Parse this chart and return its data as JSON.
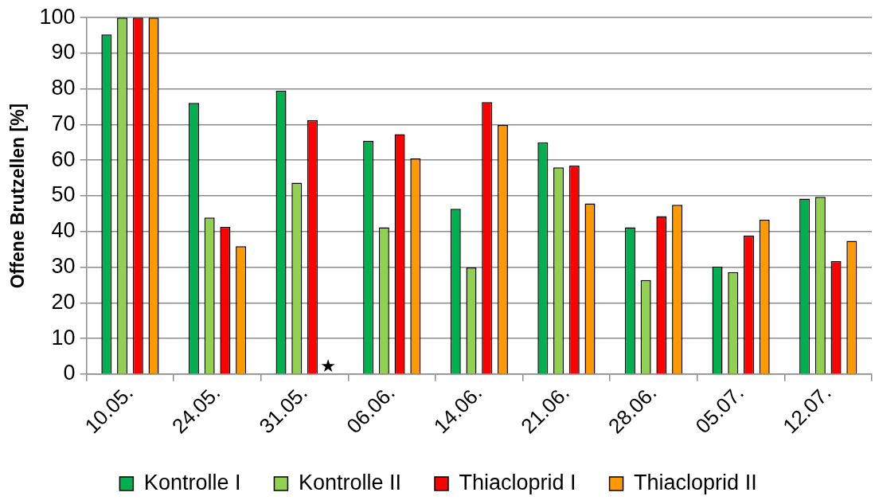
{
  "chart_data": {
    "type": "bar",
    "ylabel": "Offene Brutzellen [%]",
    "categories": [
      "10.05.",
      "24.05.",
      "31.05.",
      "06.06.",
      "14.06.",
      "21.06.",
      "28.06.",
      "05.07.",
      "12.07."
    ],
    "series": [
      {
        "name": "Kontrolle I",
        "color": "#00b050",
        "values": [
          95.3,
          76.1,
          79.5,
          65.4,
          46.4,
          65.0,
          41.2,
          30.2,
          49.2
        ]
      },
      {
        "name": "Kontrolle II",
        "color": "#92d050",
        "values": [
          100,
          43.9,
          53.7,
          41.2,
          29.9,
          58.0,
          26.4,
          28.6,
          49.7
        ]
      },
      {
        "name": "Thiacloprid I",
        "color": "#ff0000",
        "values": [
          100,
          41.3,
          71.2,
          67.3,
          76.3,
          58.5,
          44.3,
          38.9,
          31.7
        ]
      },
      {
        "name": "Thiacloprid II",
        "color": "#ff9900",
        "values": [
          100,
          35.9,
          null,
          60.5,
          69.9,
          47.9,
          47.5,
          43.3,
          37.4
        ]
      }
    ],
    "ylim": [
      0,
      100
    ],
    "yticks": [
      0,
      10,
      20,
      30,
      40,
      50,
      60,
      70,
      80,
      90,
      100
    ],
    "grid": "y",
    "legend": "bottom",
    "annotations": [
      {
        "text": "★",
        "x": "31.05.",
        "y": 2
      }
    ]
  }
}
